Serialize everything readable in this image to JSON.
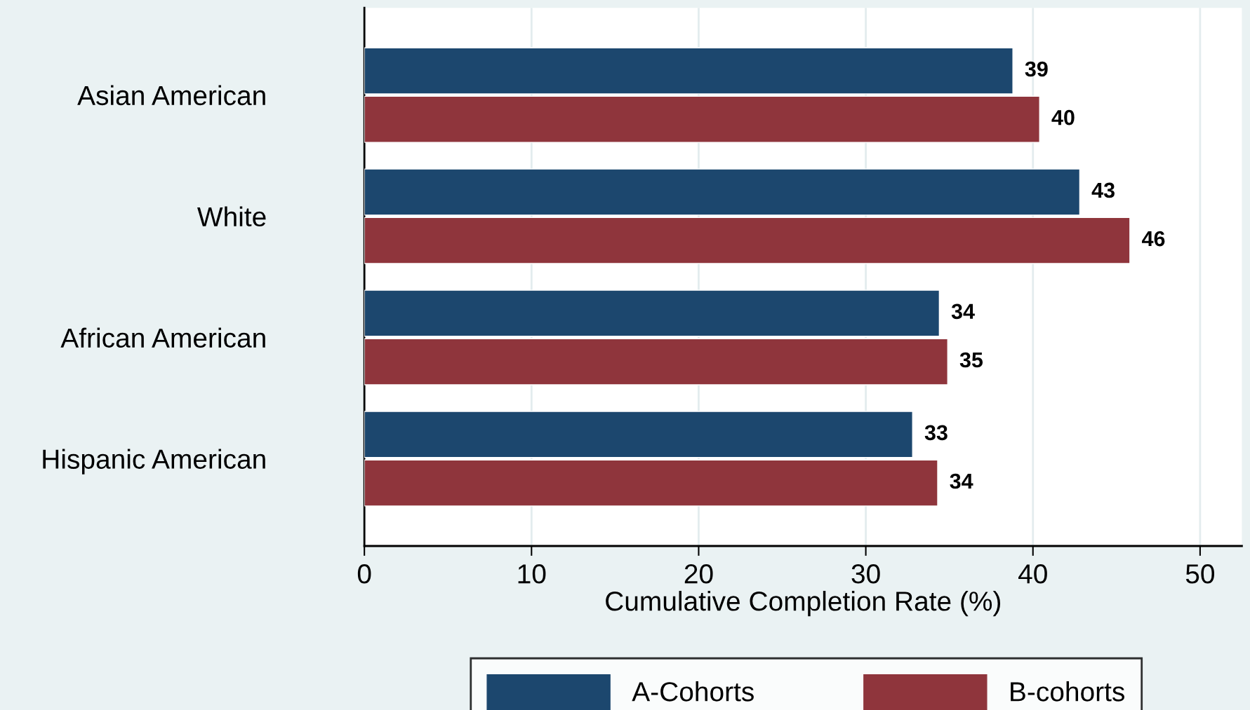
{
  "chart_data": {
    "type": "bar",
    "orientation": "horizontal",
    "xlabel": "Cumulative Completion Rate (%)",
    "categories": [
      "Asian American",
      "White",
      "African American",
      "Hispanic American"
    ],
    "series": [
      {
        "name": "A-Cohorts",
        "color": "#1c476e",
        "values": [
          38.8,
          42.8,
          34.4,
          32.8
        ],
        "value_labels": [
          "39",
          "43",
          "34",
          "33"
        ]
      },
      {
        "name": "B-cohorts",
        "color": "#8f353c",
        "values": [
          40.4,
          45.8,
          34.9,
          34.3
        ],
        "value_labels": [
          "40",
          "46",
          "35",
          "34"
        ]
      }
    ],
    "xlim": [
      0,
      52.5
    ],
    "xticks": [
      0,
      10,
      20,
      30,
      40,
      50
    ],
    "grid": "x",
    "legend": "bottom"
  }
}
